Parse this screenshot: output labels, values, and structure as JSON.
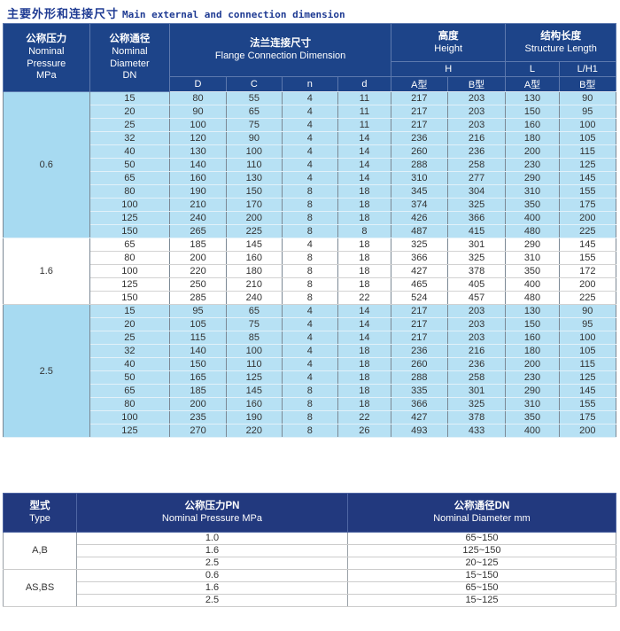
{
  "title": {
    "zh": "主要外形和连接尺寸",
    "en": "Main external and connection  dimension"
  },
  "main_table": {
    "header": {
      "pressure": {
        "zh": "公称压力",
        "en": "Nominal\nPressure\nMPa"
      },
      "diameter": {
        "zh": "公称通径",
        "en": "Nominal\nDiameter\nDN"
      },
      "flange": {
        "zh": "法兰连接尺寸",
        "en": "Flange Connection Dimension"
      },
      "height": {
        "zh": "高度",
        "en": "Height"
      },
      "structure": {
        "zh": "结构长度",
        "en": "Structure Length"
      },
      "h": "H",
      "l": "L",
      "lh1": "L/H1"
    },
    "subcols": [
      "D",
      "C",
      "n",
      "d",
      "A型",
      "B型",
      "A型",
      "B型"
    ],
    "groups": [
      {
        "pressure": "0.6",
        "shade": "blue",
        "rows": [
          [
            15,
            80,
            55,
            4,
            11,
            217,
            203,
            130,
            90
          ],
          [
            20,
            90,
            65,
            4,
            11,
            217,
            203,
            150,
            95
          ],
          [
            25,
            100,
            75,
            4,
            11,
            217,
            203,
            160,
            100
          ],
          [
            32,
            120,
            90,
            4,
            14,
            236,
            216,
            180,
            105
          ],
          [
            40,
            130,
            100,
            4,
            14,
            260,
            236,
            200,
            115
          ],
          [
            50,
            140,
            110,
            4,
            14,
            288,
            258,
            230,
            125
          ],
          [
            65,
            160,
            130,
            4,
            14,
            310,
            277,
            290,
            145
          ],
          [
            80,
            190,
            150,
            8,
            18,
            345,
            304,
            310,
            155
          ],
          [
            100,
            210,
            170,
            8,
            18,
            374,
            325,
            350,
            175
          ],
          [
            125,
            240,
            200,
            8,
            18,
            426,
            366,
            400,
            200
          ],
          [
            150,
            265,
            225,
            8,
            8,
            487,
            415,
            480,
            225
          ]
        ]
      },
      {
        "pressure": "1.6",
        "shade": "white",
        "rows": [
          [
            65,
            185,
            145,
            4,
            18,
            325,
            301,
            290,
            145
          ],
          [
            80,
            200,
            160,
            8,
            18,
            366,
            325,
            310,
            155
          ],
          [
            100,
            220,
            180,
            8,
            18,
            427,
            378,
            350,
            172
          ],
          [
            125,
            250,
            210,
            8,
            18,
            465,
            405,
            400,
            200
          ],
          [
            150,
            285,
            240,
            8,
            22,
            524,
            457,
            480,
            225
          ]
        ]
      },
      {
        "pressure": "2.5",
        "shade": "blue",
        "rows": [
          [
            15,
            95,
            65,
            4,
            14,
            217,
            203,
            130,
            90
          ],
          [
            20,
            105,
            75,
            4,
            14,
            217,
            203,
            150,
            95
          ],
          [
            25,
            115,
            85,
            4,
            14,
            217,
            203,
            160,
            100
          ],
          [
            32,
            140,
            100,
            4,
            18,
            236,
            216,
            180,
            105
          ],
          [
            40,
            150,
            110,
            4,
            18,
            260,
            236,
            200,
            115
          ],
          [
            50,
            165,
            125,
            4,
            18,
            288,
            258,
            230,
            125
          ],
          [
            65,
            185,
            145,
            8,
            18,
            335,
            301,
            290,
            145
          ],
          [
            80,
            200,
            160,
            8,
            18,
            366,
            325,
            310,
            155
          ],
          [
            100,
            235,
            190,
            8,
            22,
            427,
            378,
            350,
            175
          ],
          [
            125,
            270,
            220,
            8,
            26,
            493,
            433,
            400,
            200
          ]
        ]
      }
    ]
  },
  "type_table": {
    "header": {
      "type": {
        "zh": "型式",
        "en": "Type"
      },
      "pn": {
        "zh": "公称压力PN",
        "en": "Nominal Pressure MPa"
      },
      "dn": {
        "zh": "公称通径DN",
        "en": "Nominal Diameter mm"
      }
    },
    "groups": [
      {
        "type": "A,B",
        "rows": [
          [
            "1.0",
            "65~150"
          ],
          [
            "1.6",
            "125~150"
          ],
          [
            "2.5",
            "20~125"
          ]
        ]
      },
      {
        "type": "AS,BS",
        "rows": [
          [
            "0.6",
            "15~150"
          ],
          [
            "1.6",
            "65~150"
          ],
          [
            "2.5",
            "15~125"
          ]
        ]
      }
    ]
  },
  "colors": {
    "header_navy": "#1d4489",
    "type_header_navy": "#22397e",
    "row_light_blue": "#b7e1f4",
    "group_light_blue": "#a7daf1",
    "title_navy": "#1f3b93"
  }
}
